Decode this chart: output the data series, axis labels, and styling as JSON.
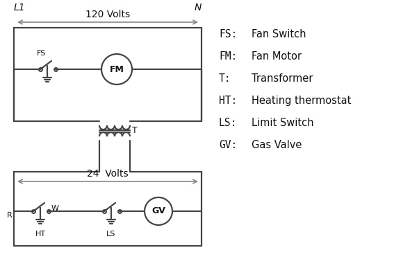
{
  "bg_color": "#ffffff",
  "line_color": "#444444",
  "arrow_color": "#888888",
  "text_color": "#111111",
  "volts_120": "120 Volts",
  "volts_24": "24  Volts",
  "L1_label": "L1",
  "N_label": "N",
  "R_label": "R",
  "W_label": "W",
  "HT_label": "HT",
  "LS_label": "LS",
  "FS_label": "FS",
  "FM_label": "FM",
  "T_label": "T",
  "GV_label": "GV",
  "legend_items": [
    [
      "FS:",
      "Fan Switch"
    ],
    [
      "FM:",
      "Fan Motor"
    ],
    [
      "T:",
      "Transformer"
    ],
    [
      "HT:",
      "Heating thermostat"
    ],
    [
      "LS:",
      "Limit Switch"
    ],
    [
      "GV:",
      "Gas Valve"
    ]
  ],
  "lw": 1.6
}
